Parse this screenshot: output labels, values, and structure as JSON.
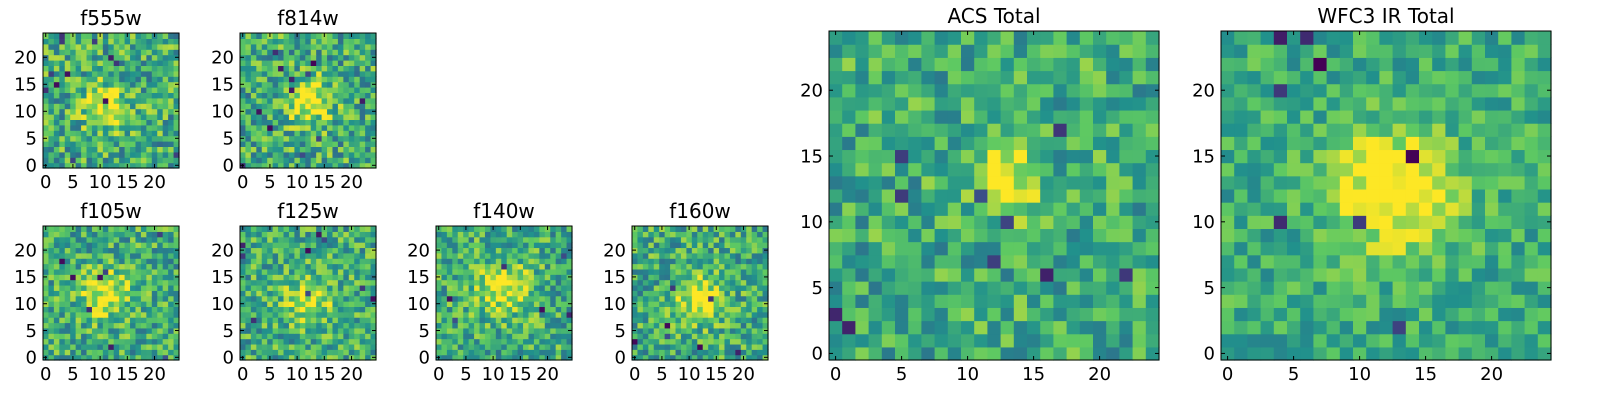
{
  "figure_title": "",
  "colormap": {
    "name": "viridis",
    "stops": [
      "#440154",
      "#3b528b",
      "#21918c",
      "#5ec962",
      "#fde725"
    ]
  },
  "chart_data": [
    {
      "type": "heatmap",
      "title": "f555w",
      "grid_size": 25,
      "xlim": [
        -0.5,
        24.5
      ],
      "ylim": [
        -0.5,
        24.5
      ],
      "xticks": [
        0,
        5,
        10,
        15,
        20
      ],
      "yticks": [
        0,
        5,
        10,
        15,
        20
      ],
      "seed": 11,
      "noise": 0.55,
      "source": {
        "x": 11,
        "y": 11,
        "sigma": 3.0,
        "amp": 0.35
      },
      "n_dark": 12
    },
    {
      "type": "heatmap",
      "title": "f814w",
      "grid_size": 25,
      "xlim": [
        -0.5,
        24.5
      ],
      "ylim": [
        -0.5,
        24.5
      ],
      "xticks": [
        0,
        5,
        10,
        15,
        20
      ],
      "yticks": [
        0,
        5,
        10,
        15,
        20
      ],
      "seed": 23,
      "noise": 0.55,
      "source": {
        "x": 12,
        "y": 12,
        "sigma": 2.8,
        "amp": 0.45
      },
      "n_dark": 12
    },
    {
      "type": "heatmap",
      "title": "f105w",
      "grid_size": 25,
      "xlim": [
        -0.5,
        24.5
      ],
      "ylim": [
        -0.5,
        24.5
      ],
      "xticks": [
        0,
        5,
        10,
        15,
        20
      ],
      "yticks": [
        0,
        5,
        10,
        15,
        20
      ],
      "seed": 37,
      "noise": 0.5,
      "source": {
        "x": 11,
        "y": 12,
        "sigma": 3.2,
        "amp": 0.35
      },
      "n_dark": 8
    },
    {
      "type": "heatmap",
      "title": "f125w",
      "grid_size": 25,
      "xlim": [
        -0.5,
        24.5
      ],
      "ylim": [
        -0.5,
        24.5
      ],
      "xticks": [
        0,
        5,
        10,
        15,
        20
      ],
      "yticks": [
        0,
        5,
        10,
        15,
        20
      ],
      "seed": 41,
      "noise": 0.5,
      "source": {
        "x": 12,
        "y": 11,
        "sigma": 3.2,
        "amp": 0.3
      },
      "n_dark": 9
    },
    {
      "type": "heatmap",
      "title": "f140w",
      "grid_size": 25,
      "xlim": [
        -0.5,
        24.5
      ],
      "ylim": [
        -0.5,
        24.5
      ],
      "xticks": [
        0,
        5,
        10,
        15,
        20
      ],
      "yticks": [
        0,
        5,
        10,
        15,
        20
      ],
      "seed": 53,
      "noise": 0.5,
      "source": {
        "x": 12,
        "y": 13,
        "sigma": 3.5,
        "amp": 0.35
      },
      "n_dark": 6
    },
    {
      "type": "heatmap",
      "title": "f160w",
      "grid_size": 25,
      "xlim": [
        -0.5,
        24.5
      ],
      "ylim": [
        -0.5,
        24.5
      ],
      "xticks": [
        0,
        5,
        10,
        15,
        20
      ],
      "yticks": [
        0,
        5,
        10,
        15,
        20
      ],
      "seed": 67,
      "noise": 0.5,
      "source": {
        "x": 12,
        "y": 11,
        "sigma": 3.0,
        "amp": 0.4
      },
      "n_dark": 7
    },
    {
      "type": "heatmap",
      "title": "ACS Total",
      "grid_size": 25,
      "xlim": [
        -0.5,
        24.5
      ],
      "ylim": [
        -0.5,
        24.5
      ],
      "xticks": [
        0,
        5,
        10,
        15,
        20
      ],
      "yticks": [
        0,
        5,
        10,
        15,
        20
      ],
      "seed": 79,
      "noise": 0.45,
      "source": {
        "x": 13,
        "y": 13,
        "sigma": 1.8,
        "amp": 0.45
      },
      "n_dark": 10
    },
    {
      "type": "heatmap",
      "title": "WFC3 IR Total",
      "grid_size": 25,
      "xlim": [
        -0.5,
        24.5
      ],
      "ylim": [
        -0.5,
        24.5
      ],
      "xticks": [
        0,
        5,
        10,
        15,
        20
      ],
      "yticks": [
        0,
        5,
        10,
        15,
        20
      ],
      "seed": 97,
      "noise": 0.35,
      "source": {
        "x": 12.5,
        "y": 12.5,
        "sigma": 3.2,
        "amp": 0.5
      },
      "n_dark": 8
    }
  ]
}
